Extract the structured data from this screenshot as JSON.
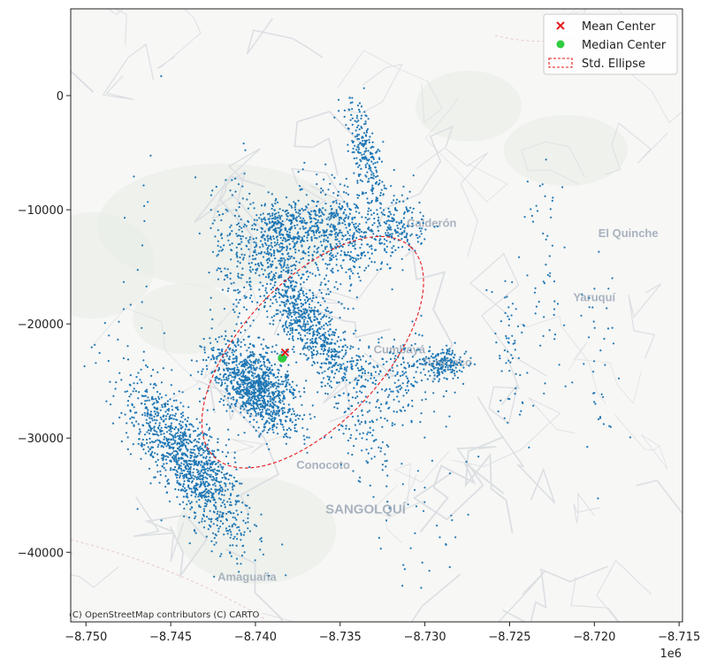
{
  "chart_data": {
    "type": "scatter",
    "title": "",
    "xlabel": "",
    "ylabel": "",
    "x_offset_label": "1e6",
    "xlim": [
      -8.7509,
      -8.7148
    ],
    "ylim": [
      -46100,
      7600
    ],
    "x_ticks": [
      -8.75,
      -8.745,
      -8.74,
      -8.735,
      -8.73,
      -8.725,
      -8.72,
      -8.715
    ],
    "x_tick_labels": [
      "−8.750",
      "−8.745",
      "−8.740",
      "−8.735",
      "−8.730",
      "−8.725",
      "−8.720",
      "−8.715"
    ],
    "y_ticks": [
      0,
      -10000,
      -20000,
      -30000,
      -40000
    ],
    "y_tick_labels": [
      "0",
      "−10000",
      "−20000",
      "−30000",
      "−40000"
    ],
    "grid": false,
    "legend_position": "top-right",
    "legend": [
      {
        "label": "Mean Center",
        "marker": "x",
        "color": "#e41a1c"
      },
      {
        "label": "Median Center",
        "marker": "circle",
        "color": "#2ecc40"
      },
      {
        "label": "Std. Ellipse",
        "marker": "dashed-rect",
        "color": "#e41a1c"
      }
    ],
    "points_color": "#1f77b4",
    "mean_center": {
      "x": -8.73825,
      "y": -22500
    },
    "median_center": {
      "x": -8.73842,
      "y": -23000
    },
    "std_ellipse": {
      "center_x": -8.73662,
      "center_y": -22480,
      "semi_major": 12600,
      "semi_minor": 6200,
      "rotation_deg": 43
    },
    "point_clusters": [
      {
        "cx": -8.744,
        "cy": -32000,
        "sx": 1400,
        "sy": 4200,
        "n": 1200,
        "rot": 35
      },
      {
        "cx": -8.74,
        "cy": -25500,
        "sx": 1400,
        "sy": 2200,
        "n": 1100,
        "rot": 40
      },
      {
        "cx": -8.737,
        "cy": -19500,
        "sx": 1200,
        "sy": 4200,
        "n": 900,
        "rot": 35
      },
      {
        "cx": -8.7355,
        "cy": -12000,
        "sx": 1700,
        "sy": 2200,
        "n": 500,
        "rot": 25
      },
      {
        "cx": -8.7335,
        "cy": -5000,
        "sx": 650,
        "sy": 2500,
        "n": 220,
        "rot": 15
      },
      {
        "cx": -8.7385,
        "cy": -11500,
        "sx": 1300,
        "sy": 1400,
        "n": 300,
        "rot": 0
      },
      {
        "cx": -8.732,
        "cy": -11500,
        "sx": 1500,
        "sy": 1500,
        "n": 220,
        "rot": 0
      },
      {
        "cx": -8.729,
        "cy": -23500,
        "sx": 900,
        "sy": 700,
        "n": 160,
        "rot": 0
      },
      {
        "cx": -8.731,
        "cy": -24500,
        "sx": 2000,
        "sy": 1800,
        "n": 150,
        "rot": 0
      },
      {
        "cx": -8.7335,
        "cy": -29000,
        "sx": 1600,
        "sy": 3200,
        "n": 120,
        "rot": 0
      },
      {
        "cx": -8.725,
        "cy": -23000,
        "sx": 900,
        "sy": 3500,
        "n": 60,
        "rot": 0
      },
      {
        "cx": -8.723,
        "cy": -16000,
        "sx": 900,
        "sy": 5000,
        "n": 50,
        "rot": 0
      },
      {
        "cx": -8.7195,
        "cy": -22000,
        "sx": 1300,
        "sy": 4500,
        "n": 40,
        "rot": 0
      },
      {
        "cx": -8.741,
        "cy": -14000,
        "sx": 1200,
        "sy": 3500,
        "n": 160,
        "rot": 0
      },
      {
        "cx": -8.73,
        "cy": -36000,
        "sx": 2400,
        "sy": 3500,
        "n": 40,
        "rot": 0
      },
      {
        "cx": -8.747,
        "cy": -20000,
        "sx": 1500,
        "sy": 8000,
        "n": 25,
        "rot": 0
      }
    ]
  },
  "basemap": {
    "attribution": "(C) OpenStreetMap contributors (C) CARTO",
    "places": [
      {
        "name": "Calderón",
        "x": -8.7296,
        "y": -11500,
        "size": 13
      },
      {
        "name": "El Quinche",
        "x": -8.718,
        "y": -12400,
        "size": 13
      },
      {
        "name": "Yaruquí",
        "x": -8.72,
        "y": -18000,
        "size": 13
      },
      {
        "name": "Cumbayá",
        "x": -8.7315,
        "y": -22600,
        "size": 13
      },
      {
        "name": "Tumbaco",
        "x": -8.7287,
        "y": -23700,
        "size": 13
      },
      {
        "name": "Conocoto",
        "x": -8.736,
        "y": -32700,
        "size": 13
      },
      {
        "name": "SANGOLQUÍ",
        "x": -8.7335,
        "y": -36600,
        "size": 15
      },
      {
        "name": "Amaguaña",
        "x": -8.7405,
        "y": -42500,
        "size": 13
      }
    ]
  }
}
